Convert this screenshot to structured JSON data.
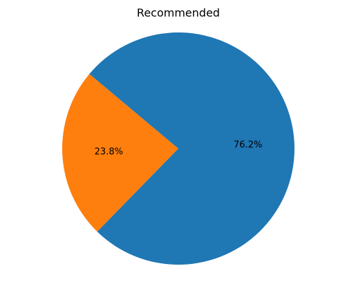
{
  "chart_data": {
    "type": "pie",
    "title": "Recommended",
    "start_angle_deg": 140,
    "direction": "counterclockwise",
    "slices": [
      {
        "value": 23.8,
        "label": "23.8%",
        "color": "#ff7f0e"
      },
      {
        "value": 76.2,
        "label": "76.2%",
        "color": "#1f77b4"
      }
    ]
  }
}
